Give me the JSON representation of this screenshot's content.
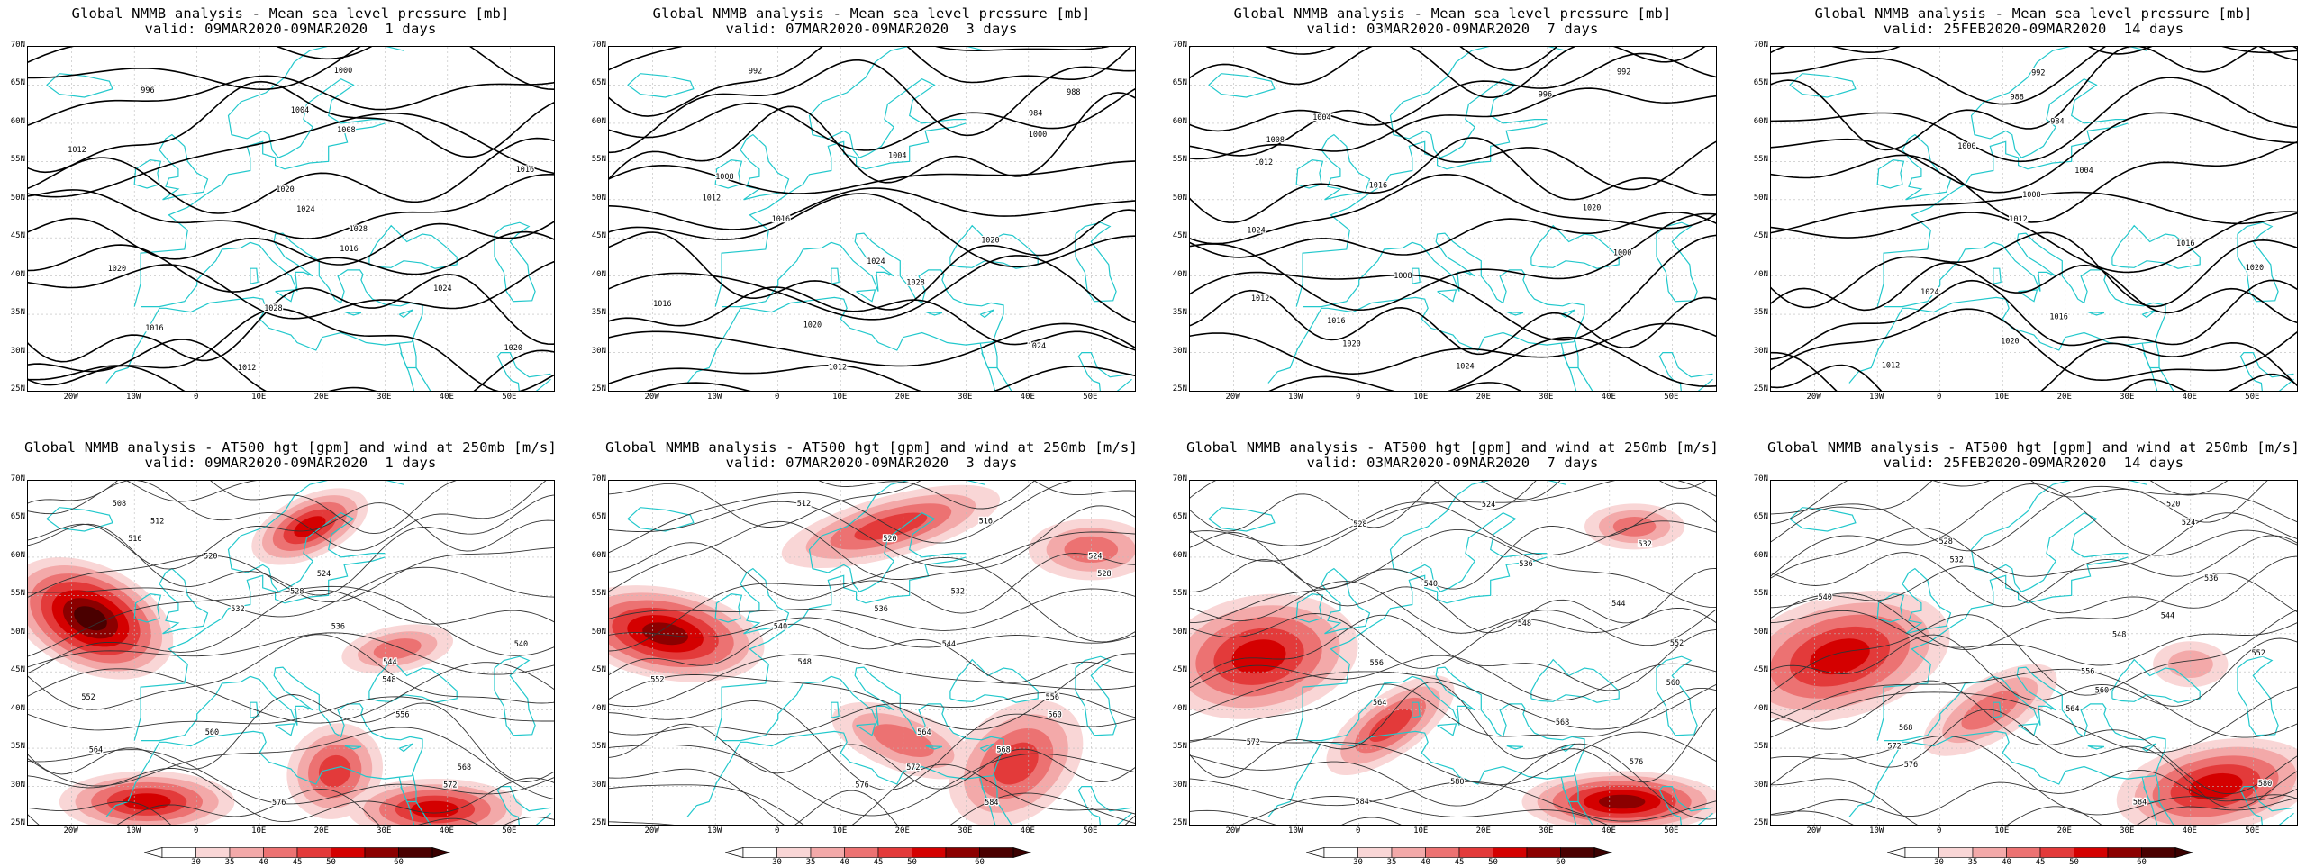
{
  "colors": {
    "coast": "#22c8cc",
    "contour_mslp": "#000000",
    "contour_hgt": "#333333",
    "wind_levels": [
      "#f9d6d6",
      "#f3a9a9",
      "#ec7272",
      "#e33a3a",
      "#d40000",
      "#8b0000",
      "#4a0000"
    ]
  },
  "rows": [
    {
      "panels": [
        {
          "title": "Global NMMB analysis - Mean sea level pressure [mb]",
          "subtitle": "valid: 09MAR2020-09MAR2020  1 days"
        },
        {
          "title": "Global NMMB analysis - Mean sea level pressure [mb]",
          "subtitle": "valid: 07MAR2020-09MAR2020  3 days"
        },
        {
          "title": "Global NMMB analysis - Mean sea level pressure [mb]",
          "subtitle": "valid: 03MAR2020-09MAR2020  7 days"
        },
        {
          "title": "Global NMMB analysis - Mean sea level pressure [mb]",
          "subtitle": "valid: 25FEB2020-09MAR2020  14 days"
        }
      ]
    },
    {
      "panels": [
        {
          "title": "Global NMMB analysis - AT500 hgt [gpm] and wind at 250mb [m/s]",
          "subtitle": "valid: 09MAR2020-09MAR2020  1 days"
        },
        {
          "title": "Global NMMB analysis - AT500 hgt [gpm] and wind at 250mb [m/s]",
          "subtitle": "valid: 07MAR2020-09MAR2020  3 days"
        },
        {
          "title": "Global NMMB analysis - AT500 hgt [gpm] and wind at 250mb [m/s]",
          "subtitle": "valid: 03MAR2020-09MAR2020  7 days"
        },
        {
          "title": "Global NMMB analysis - AT500 hgt [gpm] and wind at 250mb [m/s]",
          "subtitle": "valid: 25FEB2020-09MAR2020  14 days"
        }
      ]
    }
  ],
  "axes": {
    "lat_labels": [
      "70N",
      "65N",
      "60N",
      "55N",
      "50N",
      "45N",
      "40N",
      "35N",
      "30N",
      "25N"
    ],
    "lon_labels": [
      "20W",
      "10W",
      "0",
      "10E",
      "20E",
      "30E",
      "40E",
      "50E"
    ]
  },
  "colorbar": {
    "labels": [
      "30",
      "35",
      "40",
      "45",
      "50",
      "60"
    ]
  },
  "mslp_labels": [
    [
      "1000",
      "996",
      "1004",
      "1008",
      "1012",
      "1016",
      "1020",
      "1024",
      "1028",
      "1016",
      "1020",
      "1024",
      "1028",
      "1016",
      "1020",
      "1012"
    ],
    [
      "992",
      "988",
      "984",
      "1000",
      "1004",
      "1008",
      "1012",
      "1016",
      "1020",
      "1024",
      "1028",
      "1016",
      "1020",
      "1024",
      "1012"
    ],
    [
      "992",
      "996",
      "1004",
      "1008",
      "1012",
      "1016",
      "1020",
      "1024",
      "1000",
      "1008",
      "1012",
      "1016",
      "1020",
      "1024"
    ],
    [
      "992",
      "988",
      "984",
      "1000",
      "1004",
      "1008",
      "1012",
      "1016",
      "1020",
      "1024",
      "1016",
      "1020",
      "1012"
    ]
  ],
  "hgt_labels": [
    [
      "508",
      "512",
      "516",
      "520",
      "524",
      "528",
      "532",
      "536",
      "540",
      "544",
      "548",
      "552",
      "556",
      "560",
      "564",
      "568",
      "572",
      "576"
    ],
    [
      "512",
      "516",
      "520",
      "524",
      "528",
      "532",
      "536",
      "540",
      "544",
      "548",
      "552",
      "556",
      "560",
      "564",
      "568",
      "572",
      "576",
      "584"
    ],
    [
      "524",
      "528",
      "532",
      "536",
      "540",
      "544",
      "548",
      "552",
      "556",
      "560",
      "564",
      "568",
      "572",
      "576",
      "580",
      "584"
    ],
    [
      "520",
      "524",
      "528",
      "532",
      "536",
      "540",
      "544",
      "548",
      "552",
      "556",
      "560",
      "564",
      "568",
      "572",
      "576",
      "580",
      "584"
    ]
  ]
}
